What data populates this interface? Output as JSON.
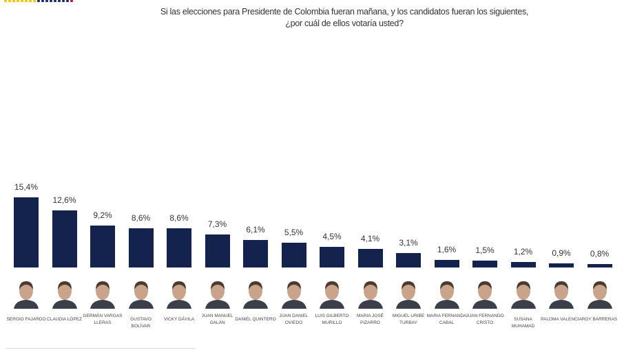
{
  "title": "Si las elecciones para Presidente de Colombia fueran mañana, y los candidatos fueran los siguientes, ¿por cuál de ellos votaría usted?",
  "colors": {
    "bar": "#14224e",
    "logo": [
      "#f2c500",
      "#f2c500",
      "#f2c500",
      "#f2c500",
      "#f2c500",
      "#f2c500",
      "#f2c500",
      "#f2c500",
      "#1a2a6c",
      "#1a2a6c",
      "#1a2a6c",
      "#1a2a6c",
      "#1a2a6c",
      "#1a2a6c",
      "#1a2a6c",
      "#1a2a6c",
      "#c8102e"
    ]
  },
  "chart_data": {
    "type": "bar",
    "title": "Si las elecciones para Presidente de Colombia fueran mañana, y los candidatos fueran los siguientes, ¿por cuál de ellos votaría usted?",
    "xlabel": "",
    "ylabel": "",
    "ylim": [
      0,
      16
    ],
    "grid": false,
    "categories": [
      "Sergio Fajardo",
      "Claudia López",
      "Germán Vargas Lleras",
      "Gustavo Bolívar",
      "Vicky Dávila",
      "Juan Manuel Galán",
      "Daniel Quintero",
      "Juan Daniel Oviedo",
      "Luis Gilberto Murillo",
      "Maria José Pizarro",
      "Miguel Uribe Turbay",
      "Maria Fernanda Cabal",
      "Juan Fernando Cristo",
      "Susana Muhamad",
      "Paloma Valencia",
      "Roy Barreras"
    ],
    "values": [
      15.4,
      12.6,
      9.2,
      8.6,
      8.6,
      7.3,
      6.1,
      5.5,
      4.5,
      4.1,
      3.1,
      1.6,
      1.5,
      1.2,
      0.9,
      0.8
    ],
    "labels": [
      "15,4%",
      "12,6%",
      "9,2%",
      "8,6%",
      "8,6%",
      "7,3%",
      "6,1%",
      "5,5%",
      "4,5%",
      "4,1%",
      "3,1%",
      "1,6%",
      "1,5%",
      "1,2%",
      "0,9%",
      "0,8%"
    ]
  }
}
